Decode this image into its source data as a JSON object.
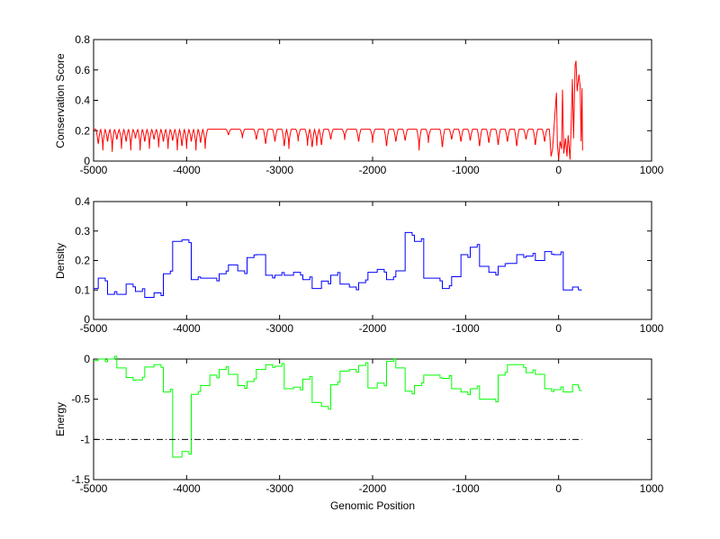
{
  "chart_data": [
    {
      "type": "line",
      "ylabel": "Conservation Score",
      "xlim": [
        -5000,
        1000
      ],
      "ylim": [
        0,
        0.8
      ],
      "xticks": [
        "-5000",
        "-4000",
        "-3000",
        "-2000",
        "-1000",
        "0",
        "1000"
      ],
      "yticks": [
        "0",
        "0.2",
        "0.4",
        "0.6",
        "0.8"
      ],
      "color": "#ff0000",
      "baseline": 0.21,
      "baseline_range": [
        -5000,
        -100
      ],
      "dips": [
        [
          -4950,
          0.08
        ],
        [
          -4900,
          0.07
        ],
        [
          -4850,
          0.1
        ],
        [
          -4800,
          0.06
        ],
        [
          -4750,
          0.12
        ],
        [
          -4700,
          0.08
        ],
        [
          -4650,
          0.1
        ],
        [
          -4600,
          0.07
        ],
        [
          -4550,
          0.13
        ],
        [
          -4500,
          0.07
        ],
        [
          -4450,
          0.1
        ],
        [
          -4400,
          0.08
        ],
        [
          -4350,
          0.12
        ],
        [
          -4300,
          0.09
        ],
        [
          -4250,
          0.1
        ],
        [
          -4200,
          0.08
        ],
        [
          -4150,
          0.11
        ],
        [
          -4100,
          0.07
        ],
        [
          -4050,
          0.06
        ],
        [
          -4000,
          0.08
        ],
        [
          -3950,
          0.1
        ],
        [
          -3900,
          0.07
        ],
        [
          -3850,
          0.09
        ],
        [
          -3800,
          0.08
        ],
        [
          -3550,
          0.16
        ],
        [
          -3400,
          0.15
        ],
        [
          -3250,
          0.12
        ],
        [
          -3150,
          0.08
        ],
        [
          -3050,
          0.1
        ],
        [
          -2950,
          0.06
        ],
        [
          -2900,
          0.08
        ],
        [
          -2800,
          0.13
        ],
        [
          -2700,
          0.1
        ],
        [
          -2650,
          0.05
        ],
        [
          -2600,
          0.1
        ],
        [
          -2550,
          0.07
        ],
        [
          -2450,
          0.12
        ],
        [
          -2300,
          0.14
        ],
        [
          -2150,
          0.1
        ],
        [
          -2000,
          0.12
        ],
        [
          -1850,
          0.06
        ],
        [
          -1750,
          0.1
        ],
        [
          -1650,
          0.11
        ],
        [
          -1500,
          0.07
        ],
        [
          -1400,
          0.12
        ],
        [
          -1250,
          0.05
        ],
        [
          -1150,
          0.12
        ],
        [
          -1050,
          0.1
        ],
        [
          -950,
          0.11
        ],
        [
          -850,
          0.06
        ],
        [
          -750,
          0.09
        ],
        [
          -650,
          0.07
        ],
        [
          -550,
          0.1
        ],
        [
          -450,
          0.06
        ],
        [
          -350,
          0.12
        ],
        [
          -250,
          0.07
        ],
        [
          -150,
          0.1
        ]
      ],
      "points": [
        [
          -97,
          0.19
        ],
        [
          -81,
          0.03
        ],
        [
          -65,
          0.08
        ],
        [
          -32,
          0.38
        ],
        [
          -23,
          0.45
        ],
        [
          -13,
          0.11
        ],
        [
          0,
          0.01
        ],
        [
          16,
          0.13
        ],
        [
          32,
          0.08
        ],
        [
          42,
          0.47
        ],
        [
          55,
          0.05
        ],
        [
          74,
          0.15
        ],
        [
          90,
          0.03
        ],
        [
          103,
          0.17
        ],
        [
          123,
          0.01
        ],
        [
          135,
          0.23
        ],
        [
          148,
          0.54
        ],
        [
          161,
          0.15
        ],
        [
          177,
          0.63
        ],
        [
          187,
          0.66
        ],
        [
          200,
          0.46
        ],
        [
          219,
          0.57
        ],
        [
          232,
          0.49
        ],
        [
          242,
          0.13
        ],
        [
          252,
          0.48
        ],
        [
          258,
          0.07
        ]
      ]
    },
    {
      "type": "line",
      "ylabel": "Density",
      "xlim": [
        -5000,
        1000
      ],
      "ylim": [
        0,
        0.4
      ],
      "xticks": [
        "-5000",
        "-4000",
        "-3000",
        "-2000",
        "-1000",
        "0",
        "1000"
      ],
      "yticks": [
        "0",
        "0.1",
        "0.2",
        "0.3",
        "0.4"
      ],
      "color": "#0000ff",
      "x": [
        -5000,
        -4900,
        -4800,
        -4700,
        -4600,
        -4500,
        -4400,
        -4300,
        -4200,
        -4100,
        -4000,
        -3900,
        -3800,
        -3700,
        -3600,
        -3500,
        -3400,
        -3300,
        -3200,
        -3100,
        -3000,
        -2900,
        -2800,
        -2700,
        -2600,
        -2500,
        -2400,
        -2300,
        -2200,
        -2100,
        -2000,
        -1900,
        -1800,
        -1700,
        -1600,
        -1500,
        -1400,
        -1300,
        -1200,
        -1100,
        -1000,
        -900,
        -800,
        -700,
        -600,
        -500,
        -400,
        -300,
        -200,
        -100,
        0,
        100,
        200,
        250
      ],
      "y": [
        0.105,
        0.14,
        0.085,
        0.085,
        0.12,
        0.095,
        0.075,
        0.09,
        0.155,
        0.265,
        0.27,
        0.135,
        0.14,
        0.14,
        0.155,
        0.185,
        0.165,
        0.21,
        0.22,
        0.15,
        0.15,
        0.15,
        0.16,
        0.135,
        0.105,
        0.13,
        0.15,
        0.12,
        0.11,
        0.125,
        0.16,
        0.17,
        0.135,
        0.165,
        0.295,
        0.265,
        0.14,
        0.14,
        0.105,
        0.145,
        0.22,
        0.245,
        0.18,
        0.16,
        0.18,
        0.19,
        0.22,
        0.215,
        0.2,
        0.23,
        0.22,
        0.1,
        0.11,
        0.1
      ]
    },
    {
      "type": "line",
      "ylabel": "Energy",
      "xlabel": "Genomic Position",
      "xlim": [
        -5000,
        1000
      ],
      "ylim": [
        -1.5,
        0
      ],
      "xticks": [
        "-5000",
        "-4000",
        "-3000",
        "-2000",
        "-1000",
        "0",
        "1000"
      ],
      "yticks": [
        "-1.5",
        "-1",
        "-0.5",
        "0"
      ],
      "color": "#00ff00",
      "x": [
        -5000,
        -4900,
        -4800,
        -4700,
        -4600,
        -4500,
        -4400,
        -4300,
        -4200,
        -4100,
        -4000,
        -3900,
        -3800,
        -3700,
        -3600,
        -3500,
        -3400,
        -3300,
        -3200,
        -3100,
        -3000,
        -2900,
        -2800,
        -2700,
        -2600,
        -2500,
        -2400,
        -2300,
        -2200,
        -2100,
        -2000,
        -1900,
        -1800,
        -1700,
        -1600,
        -1500,
        -1400,
        -1300,
        -1200,
        -1100,
        -1000,
        -900,
        -800,
        -700,
        -600,
        -500,
        -400,
        -300,
        -200,
        -100,
        0,
        100,
        200,
        250
      ],
      "y": [
        -0.02,
        0,
        0,
        -0.11,
        -0.23,
        -0.26,
        -0.1,
        -0.07,
        -0.41,
        -1.22,
        -1.15,
        -0.44,
        -0.33,
        -0.2,
        -0.13,
        -0.19,
        -0.33,
        -0.28,
        -0.13,
        -0.07,
        -0.09,
        -0.37,
        -0.35,
        -0.25,
        -0.54,
        -0.59,
        -0.32,
        -0.15,
        -0.13,
        -0.08,
        -0.36,
        -0.3,
        -0.03,
        -0.11,
        -0.4,
        -0.33,
        -0.2,
        -0.2,
        -0.24,
        -0.37,
        -0.41,
        -0.37,
        -0.5,
        -0.5,
        -0.2,
        -0.07,
        -0.07,
        -0.17,
        -0.19,
        -0.37,
        -0.38,
        -0.41,
        -0.32,
        -0.39
      ],
      "threshold": {
        "value": -1,
        "x": [
          -5000,
          250
        ]
      }
    }
  ]
}
